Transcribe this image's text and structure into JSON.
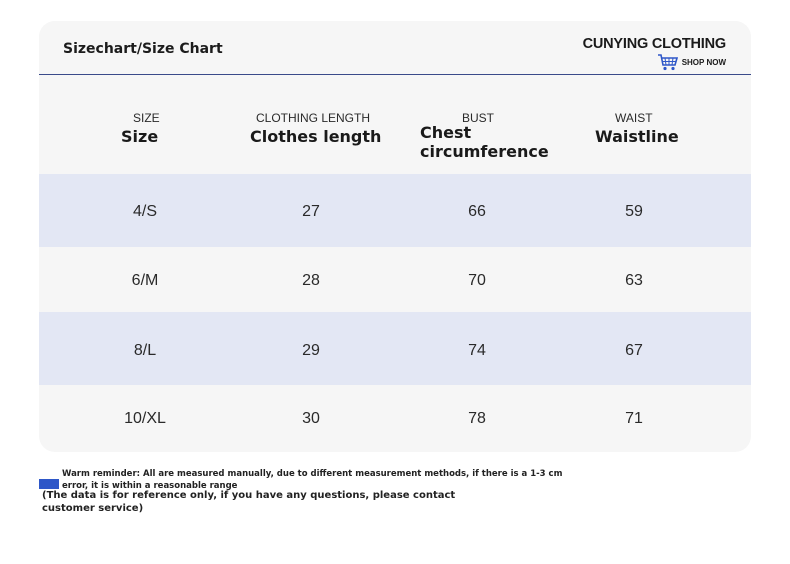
{
  "header": {
    "title": "Sizechart/Size Chart",
    "brand": "CUNYING CLOTHING",
    "shop_label": "SHOP NOW",
    "cart_icon": "shopping-cart-icon",
    "accent_color": "#3a4a8a"
  },
  "table": {
    "columns": [
      {
        "en": "SIZE",
        "zh": "Size"
      },
      {
        "en": "CLOTHING LENGTH",
        "zh": "Clothes length"
      },
      {
        "en": "BUST",
        "zh": "Chest circumference"
      },
      {
        "en": "WAIST",
        "zh": "Waistline"
      }
    ],
    "rows": [
      [
        "4/S",
        "27",
        "66",
        "59"
      ],
      [
        "6/M",
        "28",
        "70",
        "63"
      ],
      [
        "8/L",
        "29",
        "74",
        "67"
      ],
      [
        "10/XL",
        "30",
        "78",
        "71"
      ]
    ],
    "row_shade_color": "#e3e7f4"
  },
  "notes": {
    "warm": "Warm reminder: All are measured manually, due to different measurement methods, if there is a 1-3 cm error, it is within a reasonable range",
    "reference": "(The data is for reference only, if you have any questions, please contact customer service)",
    "swatch_color": "#2e57c8"
  }
}
